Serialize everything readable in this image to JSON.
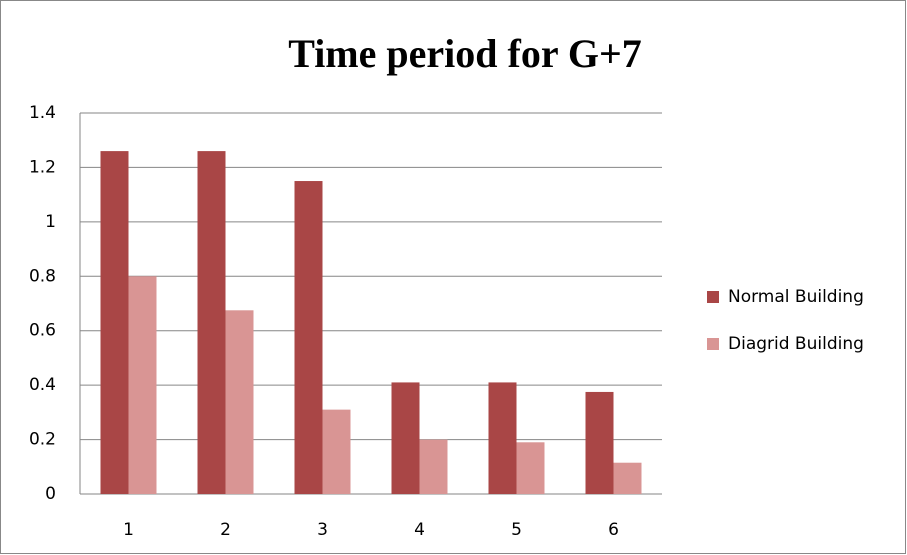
{
  "chart_data": {
    "type": "bar",
    "title": "Time period for G+7",
    "categories": [
      "1",
      "2",
      "3",
      "4",
      "5",
      "6"
    ],
    "series": [
      {
        "name": "Normal Building",
        "color": "#a94646",
        "values": [
          1.26,
          1.26,
          1.15,
          0.41,
          0.41,
          0.375
        ]
      },
      {
        "name": "Diagrid Building",
        "color": "#d99594",
        "values": [
          0.8,
          0.675,
          0.31,
          0.2,
          0.19,
          0.115
        ]
      }
    ],
    "ylim": [
      0,
      1.4
    ],
    "yticks": [
      0,
      0.2,
      0.4,
      0.6,
      0.8,
      1,
      1.2,
      1.4
    ],
    "grid": true,
    "legend": "right"
  }
}
